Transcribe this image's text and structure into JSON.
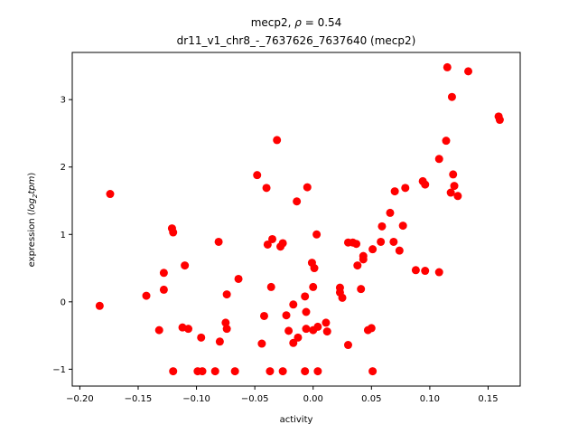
{
  "chart_data": {
    "type": "scatter",
    "title_main": "mecp2, ",
    "title_rho_symbol": "ρ",
    "title_rho_value": " = 0.54",
    "title_line2": "dr11_v1_chr8_-_7637626_7637640 (mecp2)",
    "xlabel": "activity",
    "ylabel_prefix": "expression (",
    "ylabel_log": "log",
    "ylabel_sub": "2",
    "ylabel_tpm": "tpm",
    "ylabel_suffix": ")",
    "xlim": [
      -0.2065,
      0.1775
    ],
    "ylim": [
      -1.25,
      3.7
    ],
    "x_ticks": [
      -0.2,
      -0.15,
      -0.1,
      -0.05,
      0.0,
      0.05,
      0.1,
      0.15
    ],
    "x_tick_labels": [
      "−0.20",
      "−0.15",
      "−0.10",
      "−0.05",
      "0.00",
      "0.05",
      "0.10",
      "0.15"
    ],
    "y_ticks": [
      -1,
      0,
      1,
      2,
      3
    ],
    "y_tick_labels": [
      "−1",
      "0",
      "1",
      "2",
      "3"
    ],
    "marker_color": "#ff0000",
    "points": [
      {
        "x": -0.183,
        "y": -0.06
      },
      {
        "x": -0.174,
        "y": 1.6
      },
      {
        "x": -0.143,
        "y": 0.09
      },
      {
        "x": -0.132,
        "y": -0.42
      },
      {
        "x": -0.128,
        "y": 0.43
      },
      {
        "x": -0.128,
        "y": 0.18
      },
      {
        "x": -0.121,
        "y": 1.09
      },
      {
        "x": -0.12,
        "y": 1.03
      },
      {
        "x": -0.12,
        "y": -1.03
      },
      {
        "x": -0.112,
        "y": -0.38
      },
      {
        "x": -0.11,
        "y": 0.54
      },
      {
        "x": -0.107,
        "y": -0.4
      },
      {
        "x": -0.099,
        "y": -1.03
      },
      {
        "x": -0.096,
        "y": -0.53
      },
      {
        "x": -0.095,
        "y": -1.03
      },
      {
        "x": -0.084,
        "y": -1.03
      },
      {
        "x": -0.081,
        "y": 0.89
      },
      {
        "x": -0.08,
        "y": -0.59
      },
      {
        "x": -0.075,
        "y": -0.31
      },
      {
        "x": -0.074,
        "y": 0.11
      },
      {
        "x": -0.074,
        "y": -0.4
      },
      {
        "x": -0.067,
        "y": -1.03
      },
      {
        "x": -0.064,
        "y": 0.34
      },
      {
        "x": -0.048,
        "y": 1.88
      },
      {
        "x": -0.044,
        "y": -0.62
      },
      {
        "x": -0.042,
        "y": -0.21
      },
      {
        "x": -0.04,
        "y": 1.69
      },
      {
        "x": -0.039,
        "y": 0.85
      },
      {
        "x": -0.037,
        "y": -1.03
      },
      {
        "x": -0.036,
        "y": 0.22
      },
      {
        "x": -0.035,
        "y": 0.93
      },
      {
        "x": -0.031,
        "y": 2.4
      },
      {
        "x": -0.028,
        "y": 0.82
      },
      {
        "x": -0.026,
        "y": 0.87
      },
      {
        "x": -0.026,
        "y": -1.03
      },
      {
        "x": -0.023,
        "y": -0.2
      },
      {
        "x": -0.021,
        "y": -0.43
      },
      {
        "x": -0.017,
        "y": -0.04
      },
      {
        "x": -0.017,
        "y": -0.61
      },
      {
        "x": -0.014,
        "y": 1.49
      },
      {
        "x": -0.013,
        "y": -0.53
      },
      {
        "x": -0.007,
        "y": 0.08
      },
      {
        "x": -0.007,
        "y": -1.03
      },
      {
        "x": -0.006,
        "y": -0.4
      },
      {
        "x": -0.006,
        "y": -0.15
      },
      {
        "x": -0.005,
        "y": 1.7
      },
      {
        "x": -0.001,
        "y": 0.58
      },
      {
        "x": 0.0,
        "y": 0.22
      },
      {
        "x": 0.0,
        "y": -0.42
      },
      {
        "x": 0.001,
        "y": 0.5
      },
      {
        "x": 0.003,
        "y": 1.0
      },
      {
        "x": 0.004,
        "y": -0.37
      },
      {
        "x": 0.004,
        "y": -1.03
      },
      {
        "x": 0.011,
        "y": -0.31
      },
      {
        "x": 0.012,
        "y": -0.44
      },
      {
        "x": 0.023,
        "y": 0.21
      },
      {
        "x": 0.023,
        "y": 0.14
      },
      {
        "x": 0.025,
        "y": 0.06
      },
      {
        "x": 0.03,
        "y": 0.88
      },
      {
        "x": 0.03,
        "y": -0.64
      },
      {
        "x": 0.034,
        "y": 0.88
      },
      {
        "x": 0.037,
        "y": 0.86
      },
      {
        "x": 0.038,
        "y": 0.54
      },
      {
        "x": 0.041,
        "y": 0.19
      },
      {
        "x": 0.043,
        "y": 0.63
      },
      {
        "x": 0.043,
        "y": 0.68
      },
      {
        "x": 0.047,
        "y": -0.42
      },
      {
        "x": 0.05,
        "y": -0.39
      },
      {
        "x": 0.051,
        "y": 0.78
      },
      {
        "x": 0.051,
        "y": -1.03
      },
      {
        "x": 0.058,
        "y": 0.89
      },
      {
        "x": 0.059,
        "y": 1.12
      },
      {
        "x": 0.066,
        "y": 1.32
      },
      {
        "x": 0.069,
        "y": 0.89
      },
      {
        "x": 0.07,
        "y": 1.64
      },
      {
        "x": 0.074,
        "y": 0.76
      },
      {
        "x": 0.077,
        "y": 1.13
      },
      {
        "x": 0.079,
        "y": 1.69
      },
      {
        "x": 0.088,
        "y": 0.47
      },
      {
        "x": 0.094,
        "y": 1.79
      },
      {
        "x": 0.096,
        "y": 1.74
      },
      {
        "x": 0.096,
        "y": 0.46
      },
      {
        "x": 0.108,
        "y": 2.12
      },
      {
        "x": 0.108,
        "y": 0.44
      },
      {
        "x": 0.114,
        "y": 2.39
      },
      {
        "x": 0.115,
        "y": 3.48
      },
      {
        "x": 0.118,
        "y": 1.62
      },
      {
        "x": 0.119,
        "y": 3.04
      },
      {
        "x": 0.12,
        "y": 1.89
      },
      {
        "x": 0.121,
        "y": 1.72
      },
      {
        "x": 0.124,
        "y": 1.57
      },
      {
        "x": 0.133,
        "y": 3.42
      },
      {
        "x": 0.159,
        "y": 2.75
      },
      {
        "x": 0.16,
        "y": 2.7
      }
    ]
  }
}
